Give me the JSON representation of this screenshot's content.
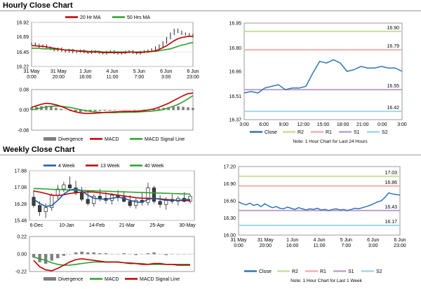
{
  "sections": {
    "hourly_title": "Hourly Close Chart",
    "weekly_title": "Weekly Close Chart"
  },
  "colors": {
    "close": "#1f5aa6",
    "ma20": "#c00000",
    "ma50": "#2ca02c",
    "divergence": "#7f7f7f",
    "macd": "#c00000",
    "signal": "#2ca02c",
    "r2": "#c6e0a0",
    "r1": "#f0b0b0",
    "s1": "#c0a0d0",
    "s2": "#a0d8e8",
    "pivot_close": "#2e75b6",
    "up_candle": "#ffffff",
    "down_candle": "#404040"
  },
  "chart_data": [
    {
      "id": "hourly-price",
      "type": "line",
      "legend": [
        "20 Hr MA",
        "50 Hrs MA"
      ],
      "y_ticks": [
        "16.92",
        "16.69",
        "16.45",
        "16.22"
      ],
      "ylim": [
        16.22,
        16.92
      ],
      "x_ticks": [
        "31 May\n0:00",
        "31 May\n20:00",
        "1 Jun\n16:00",
        "4 Jun\n11:00",
        "5 Jun\n7:00",
        "6 Jun\n3:00",
        "6 Jun\n23:00"
      ],
      "close": [
        16.58,
        16.56,
        16.54,
        16.55,
        16.52,
        16.5,
        16.48,
        16.5,
        16.47,
        16.46,
        16.48,
        16.45,
        16.46,
        16.47,
        16.45,
        16.44,
        16.46,
        16.45,
        16.44,
        16.43,
        16.45,
        16.46,
        16.44,
        16.43,
        16.44,
        16.45,
        16.46,
        16.44,
        16.43,
        16.45,
        16.46,
        16.47,
        16.49,
        16.52,
        16.55,
        16.6,
        16.67,
        16.74,
        16.8,
        16.77,
        16.74,
        16.73,
        16.72,
        16.7
      ],
      "ma20": [
        16.55,
        16.55,
        16.54,
        16.54,
        16.53,
        16.52,
        16.51,
        16.5,
        16.49,
        16.48,
        16.48,
        16.47,
        16.47,
        16.46,
        16.46,
        16.45,
        16.45,
        16.45,
        16.45,
        16.44,
        16.44,
        16.44,
        16.44,
        16.44,
        16.44,
        16.44,
        16.45,
        16.45,
        16.44,
        16.44,
        16.45,
        16.45,
        16.46,
        16.47,
        16.49,
        16.52,
        16.55,
        16.59,
        16.63,
        16.66,
        16.68,
        16.69,
        16.7,
        16.7
      ],
      "ma50": [
        16.51,
        16.51,
        16.51,
        16.5,
        16.5,
        16.5,
        16.49,
        16.49,
        16.49,
        16.48,
        16.48,
        16.48,
        16.47,
        16.47,
        16.47,
        16.46,
        16.46,
        16.46,
        16.46,
        16.45,
        16.45,
        16.45,
        16.45,
        16.45,
        16.45,
        16.45,
        16.45,
        16.45,
        16.45,
        16.45,
        16.45,
        16.46,
        16.46,
        16.46,
        16.47,
        16.48,
        16.49,
        16.5,
        16.52,
        16.54,
        16.56,
        16.57,
        16.59,
        16.6
      ]
    },
    {
      "id": "hourly-macd",
      "type": "bar",
      "legend": [
        "Divergence",
        "MACD",
        "MACD Signal Line"
      ],
      "y_ticks": [
        "0.08",
        "0.00",
        "-0.08"
      ],
      "ylim": [
        -0.08,
        0.08
      ],
      "divergence": [
        0.01,
        0.012,
        0.014,
        0.016,
        0.012,
        0.008,
        0.004,
        0.0,
        -0.004,
        -0.006,
        -0.008,
        -0.006,
        -0.004,
        -0.004,
        -0.003,
        -0.002,
        -0.002,
        -0.001,
        0.0,
        0.0,
        0.0,
        -0.001,
        0.0,
        0.001,
        0.002,
        0.004,
        0.006,
        0.008,
        0.01,
        0.012,
        0.014,
        0.012,
        0.01,
        0.008
      ],
      "macd": [
        0.01,
        0.016,
        0.022,
        0.026,
        0.024,
        0.02,
        0.014,
        0.006,
        -0.002,
        -0.008,
        -0.012,
        -0.014,
        -0.014,
        -0.013,
        -0.012,
        -0.01,
        -0.009,
        -0.008,
        -0.007,
        -0.006,
        -0.006,
        -0.006,
        -0.005,
        -0.003,
        0.0,
        0.004,
        0.01,
        0.018,
        0.026,
        0.036,
        0.046,
        0.056,
        0.064,
        0.066
      ],
      "signal": [
        0.0,
        0.004,
        0.008,
        0.012,
        0.014,
        0.015,
        0.014,
        0.012,
        0.009,
        0.005,
        0.001,
        -0.003,
        -0.006,
        -0.008,
        -0.01,
        -0.011,
        -0.011,
        -0.011,
        -0.01,
        -0.01,
        -0.009,
        -0.009,
        -0.008,
        -0.007,
        -0.006,
        -0.004,
        -0.002,
        0.002,
        0.008,
        0.014,
        0.022,
        0.032,
        0.044,
        0.056
      ]
    },
    {
      "id": "hourly-pivot",
      "type": "line",
      "legend": [
        "Close",
        "R2",
        "R1",
        "S1",
        "S2"
      ],
      "note": "Note: 1 Hour Chart for Last 24 Hours",
      "y_ticks": [
        "16.95",
        "16.80",
        "16.66",
        "16.51",
        "16.37"
      ],
      "ylim": [
        16.37,
        16.95
      ],
      "x_ticks": [
        "3:00",
        "6:00",
        "9:00",
        "12:00",
        "15:00",
        "18:00",
        "21:00",
        "0:00",
        "3:00"
      ],
      "levels": {
        "R2": 16.9,
        "R1": 16.79,
        "S1": 16.55,
        "S2": 16.42
      },
      "level_labels": [
        "16.90",
        "16.79",
        "16.55",
        "16.42"
      ],
      "close": [
        16.53,
        16.54,
        16.53,
        16.56,
        16.57,
        16.58,
        16.55,
        16.56,
        16.56,
        16.57,
        16.65,
        16.72,
        16.71,
        16.73,
        16.71,
        16.66,
        16.67,
        16.69,
        16.68,
        16.68,
        16.69,
        16.68,
        16.68,
        16.66
      ]
    },
    {
      "id": "weekly-price",
      "type": "candlestick",
      "legend": [
        "4 Week",
        "13 Week",
        "40 Week"
      ],
      "y_ticks": [
        "17.88",
        "17.08",
        "16.28",
        "15.48"
      ],
      "ylim": [
        15.48,
        17.88
      ],
      "x_ticks": [
        "6-Dec",
        "10-Jan",
        "14-Feb",
        "21-Mar",
        "25-Apr",
        "30-May"
      ],
      "candles": [
        {
          "o": 16.6,
          "h": 16.95,
          "l": 16.1,
          "c": 16.2
        },
        {
          "o": 16.2,
          "h": 16.4,
          "l": 15.7,
          "c": 15.9
        },
        {
          "o": 15.9,
          "h": 16.3,
          "l": 15.6,
          "c": 16.1
        },
        {
          "o": 16.1,
          "h": 16.8,
          "l": 15.95,
          "c": 16.7
        },
        {
          "o": 16.7,
          "h": 17.2,
          "l": 16.5,
          "c": 17.0
        },
        {
          "o": 17.0,
          "h": 17.35,
          "l": 16.85,
          "c": 17.2
        },
        {
          "o": 17.2,
          "h": 17.6,
          "l": 16.9,
          "c": 17.05
        },
        {
          "o": 17.05,
          "h": 17.4,
          "l": 16.7,
          "c": 16.8
        },
        {
          "o": 16.8,
          "h": 17.1,
          "l": 16.4,
          "c": 16.5
        },
        {
          "o": 16.5,
          "h": 16.9,
          "l": 16.2,
          "c": 16.3
        },
        {
          "o": 16.3,
          "h": 16.75,
          "l": 16.15,
          "c": 16.65
        },
        {
          "o": 16.65,
          "h": 17.0,
          "l": 16.4,
          "c": 16.55
        },
        {
          "o": 16.55,
          "h": 16.85,
          "l": 16.3,
          "c": 16.45
        },
        {
          "o": 16.45,
          "h": 16.8,
          "l": 16.25,
          "c": 16.7
        },
        {
          "o": 16.7,
          "h": 16.95,
          "l": 16.4,
          "c": 16.6
        },
        {
          "o": 16.6,
          "h": 16.9,
          "l": 16.35,
          "c": 16.4
        },
        {
          "o": 16.4,
          "h": 16.7,
          "l": 16.1,
          "c": 16.2
        },
        {
          "o": 16.2,
          "h": 16.55,
          "l": 16.05,
          "c": 16.45
        },
        {
          "o": 16.45,
          "h": 16.8,
          "l": 16.2,
          "c": 16.35
        },
        {
          "o": 16.35,
          "h": 17.3,
          "l": 16.2,
          "c": 17.05
        },
        {
          "o": 17.05,
          "h": 17.15,
          "l": 16.3,
          "c": 16.4
        },
        {
          "o": 16.4,
          "h": 16.7,
          "l": 16.1,
          "c": 16.25
        },
        {
          "o": 16.25,
          "h": 16.6,
          "l": 16.0,
          "c": 16.5
        },
        {
          "o": 16.5,
          "h": 16.75,
          "l": 16.3,
          "c": 16.4
        },
        {
          "o": 16.4,
          "h": 16.65,
          "l": 16.2,
          "c": 16.55
        },
        {
          "o": 16.55,
          "h": 16.85,
          "l": 16.35,
          "c": 16.4
        },
        {
          "o": 16.4,
          "h": 16.75,
          "l": 16.3,
          "c": 16.65
        }
      ],
      "ma4": [
        16.5,
        16.3,
        16.15,
        16.2,
        16.45,
        16.75,
        16.95,
        17.0,
        16.9,
        16.7,
        16.55,
        16.52,
        16.5,
        16.55,
        16.6,
        16.55,
        16.45,
        16.38,
        16.35,
        16.5,
        16.55,
        16.5,
        16.45,
        16.45,
        16.45,
        16.48,
        16.5
      ],
      "ma13": [
        16.9,
        16.85,
        16.78,
        16.7,
        16.68,
        16.72,
        16.78,
        16.82,
        16.85,
        16.86,
        16.85,
        16.82,
        16.78,
        16.74,
        16.7,
        16.66,
        16.62,
        16.58,
        16.55,
        16.55,
        16.54,
        16.52,
        16.49,
        16.47,
        16.45,
        16.44,
        16.44
      ],
      "ma40": [
        17.02,
        17.01,
        17.0,
        16.98,
        16.97,
        16.96,
        16.95,
        16.94,
        16.93,
        16.92,
        16.91,
        16.9,
        16.89,
        16.88,
        16.87,
        16.86,
        16.85,
        16.84,
        16.83,
        16.82,
        16.81,
        16.8,
        16.79,
        16.78,
        16.77,
        16.76,
        16.75
      ]
    },
    {
      "id": "weekly-macd",
      "type": "bar",
      "legend": [
        "Divergence",
        "MACD",
        "MACD Signal Line"
      ],
      "y_ticks": [
        "0.22",
        "0.00",
        "-0.22"
      ],
      "ylim": [
        -0.22,
        0.22
      ],
      "divergence": [
        -0.04,
        -0.1,
        -0.12,
        -0.08,
        -0.05,
        -0.02,
        0.0,
        0.02,
        0.03,
        0.02,
        0.02,
        0.01,
        0.01,
        0.0,
        0.0,
        0.01,
        0.0,
        -0.01,
        0.0,
        0.01,
        0.02,
        0.0,
        -0.01,
        0.0,
        0.0,
        0.0,
        0.0
      ],
      "macd": [
        -0.08,
        -0.16,
        -0.2,
        -0.21,
        -0.18,
        -0.14,
        -0.1,
        -0.07,
        -0.06,
        -0.07,
        -0.08,
        -0.09,
        -0.1,
        -0.1,
        -0.1,
        -0.11,
        -0.12,
        -0.12,
        -0.13,
        -0.13,
        -0.12,
        -0.12,
        -0.13,
        -0.13,
        -0.14,
        -0.14,
        -0.14
      ],
      "signal": [
        -0.04,
        -0.06,
        -0.08,
        -0.11,
        -0.13,
        -0.14,
        -0.14,
        -0.13,
        -0.12,
        -0.11,
        -0.1,
        -0.1,
        -0.1,
        -0.1,
        -0.1,
        -0.11,
        -0.11,
        -0.12,
        -0.12,
        -0.13,
        -0.13,
        -0.13,
        -0.13,
        -0.13,
        -0.13,
        -0.13,
        -0.13
      ]
    },
    {
      "id": "weekly-pivot",
      "type": "line",
      "legend": [
        "Close",
        "R2",
        "R1",
        "S1",
        "S2"
      ],
      "note": "Note: 1 Hour Chart for Last 1 Week",
      "y_ticks": [
        "17.20",
        "16.90",
        "16.60",
        "16.30",
        "16.00"
      ],
      "ylim": [
        16.0,
        17.2
      ],
      "x_ticks": [
        "31 May\n0:00",
        "31 May\n20:00",
        "1 Jun\n16:00",
        "4 Jun\n11:00",
        "5 Jun\n7:00",
        "6 Jun\n3:00",
        "6 Jun\n23:00"
      ],
      "levels": {
        "R2": 17.03,
        "R1": 16.86,
        "S1": 16.43,
        "S2": 16.17
      },
      "level_labels": [
        "17.03",
        "16.86",
        "16.43",
        "16.17"
      ],
      "close": [
        16.58,
        16.55,
        16.53,
        16.56,
        16.52,
        16.54,
        16.5,
        16.55,
        16.51,
        16.48,
        16.5,
        16.47,
        16.46,
        16.49,
        16.47,
        16.45,
        16.48,
        16.46,
        16.44,
        16.46,
        16.45,
        16.47,
        16.44,
        16.45,
        16.43,
        16.45,
        16.46,
        16.44,
        16.45,
        16.43,
        16.45,
        16.47,
        16.46,
        16.48,
        16.5,
        16.52,
        16.55,
        16.58,
        16.6,
        16.66,
        16.74,
        16.72,
        16.71,
        16.7
      ]
    }
  ]
}
